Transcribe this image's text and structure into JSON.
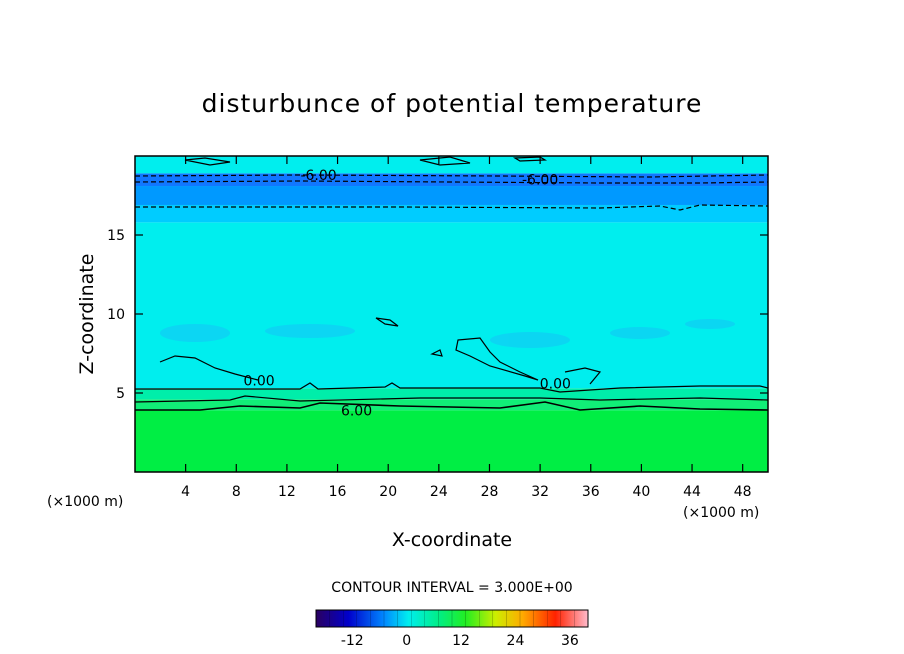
{
  "chart_data": {
    "type": "heatmap",
    "title": "disturbunce of potential temperature",
    "xlabel": "X-coordinate",
    "ylabel": "Z-coordinate",
    "x_unit": "(×1000 m)",
    "z_unit": "(×1000 m)",
    "xlim": [
      0,
      50
    ],
    "ylim": [
      0,
      20
    ],
    "x_ticks": [
      "4",
      "8",
      "12",
      "16",
      "20",
      "24",
      "28",
      "32",
      "36",
      "40",
      "44",
      "48"
    ],
    "y_ticks": [
      "5",
      "10",
      "15"
    ],
    "contour_interval_text": "CONTOUR INTERVAL = 3.000E+00",
    "colorbar": {
      "min": -20,
      "max": 40,
      "tick_labels": [
        "-12",
        "0",
        "12",
        "24",
        "36"
      ],
      "tick_values": [
        -12,
        0,
        12,
        24,
        36
      ]
    },
    "bands": [
      {
        "z_from": 0,
        "z_to": 3.9,
        "value": 9,
        "color": "#00ee44"
      },
      {
        "z_from": 3.9,
        "z_to": 4.6,
        "value": 6,
        "color": "#11ee77"
      },
      {
        "z_from": 4.6,
        "z_to": 5.3,
        "value": 3,
        "color": "#00eeaa"
      },
      {
        "z_from": 5.3,
        "z_to": 15.8,
        "value": 0,
        "color": "#00eeee"
      },
      {
        "z_from": 15.8,
        "z_to": 16.9,
        "value": -3,
        "color": "#00ccff"
      },
      {
        "z_from": 16.9,
        "z_to": 18.1,
        "value": -6,
        "color": "#0099ff"
      },
      {
        "z_from": 18.1,
        "z_to": 18.9,
        "value": -9,
        "color": "#1177ff"
      },
      {
        "z_from": 18.9,
        "z_to": 20,
        "value": 0,
        "color": "#00eeee"
      }
    ],
    "contour_labels": [
      {
        "text": "6.00",
        "x": 17.5,
        "z": 3.9
      },
      {
        "text": "0.00",
        "x": 9.8,
        "z": 5.8
      },
      {
        "text": "0.00",
        "x": 33.2,
        "z": 5.6
      },
      {
        "text": "-6.00",
        "x": 14.5,
        "z": 18.8
      },
      {
        "text": "-6.00",
        "x": 32.0,
        "z": 18.5
      }
    ]
  }
}
